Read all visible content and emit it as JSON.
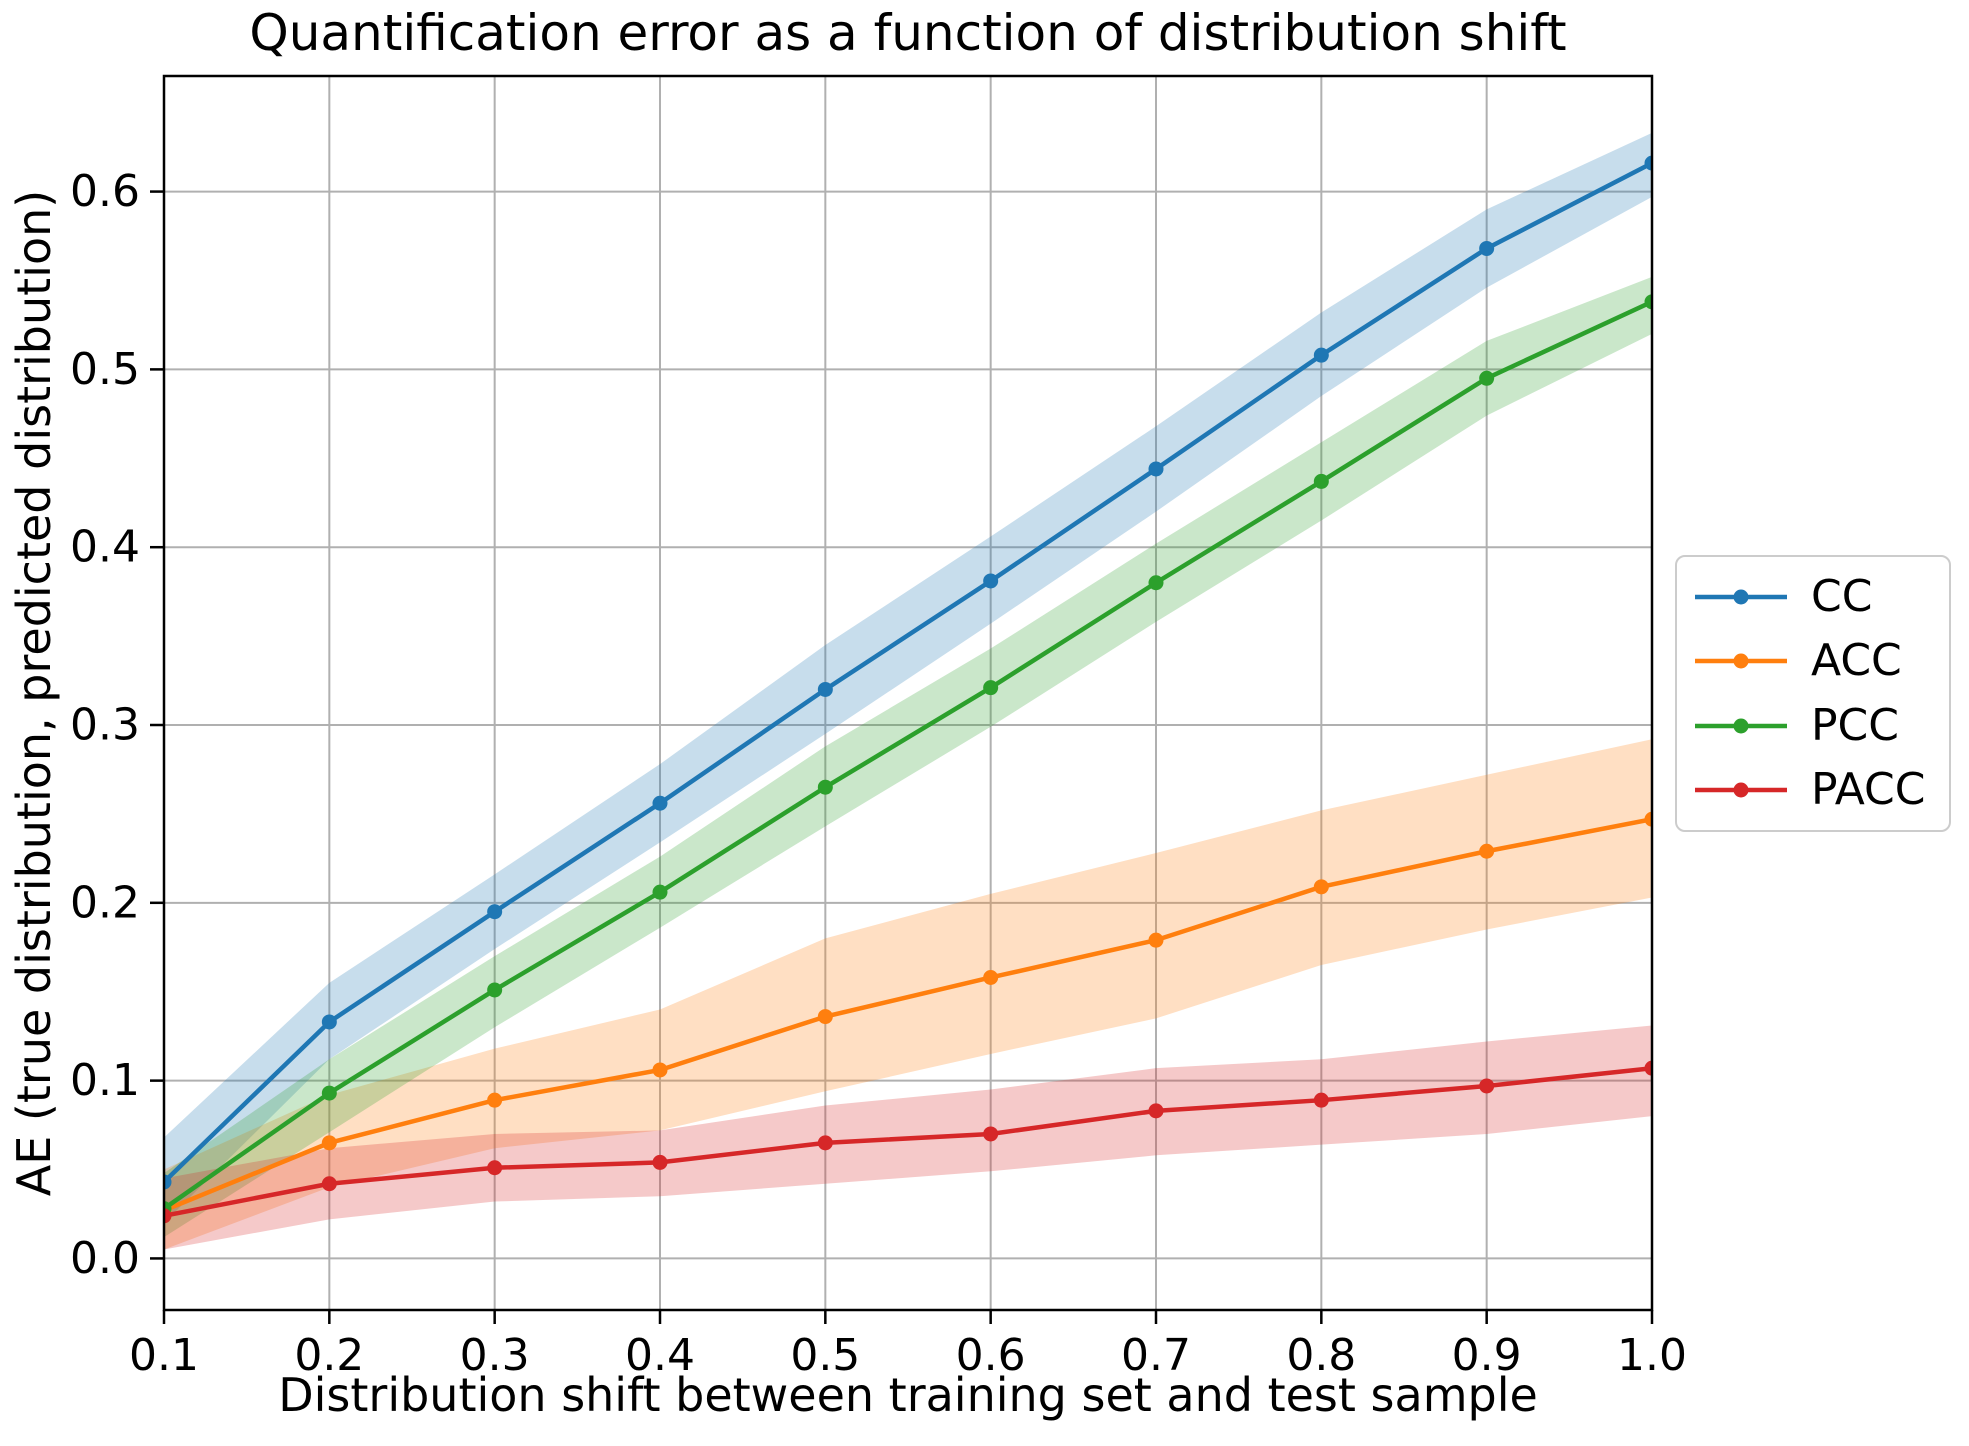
{
  "chart_data": {
    "type": "line",
    "title": "Quantification error as a function of distribution shift",
    "xlabel": "Distribution shift between training set and test sample",
    "ylabel": "AE (true distribution, predicted distribution)",
    "x": [
      0.1,
      0.2,
      0.3,
      0.4,
      0.5,
      0.6,
      0.7,
      0.8,
      0.9,
      1.0
    ],
    "x_tick_labels": [
      "0.1",
      "0.2",
      "0.3",
      "0.4",
      "0.5",
      "0.6",
      "0.7",
      "0.8",
      "0.9",
      "1.0"
    ],
    "y_ticks": [
      0.0,
      0.1,
      0.2,
      0.3,
      0.4,
      0.5,
      0.6
    ],
    "y_tick_labels": [
      "0.0",
      "0.1",
      "0.2",
      "0.3",
      "0.4",
      "0.5",
      "0.6"
    ],
    "xlim": [
      0.1,
      1.0
    ],
    "ylim": [
      -0.029,
      0.665
    ],
    "grid": true,
    "grid_color": "#b0b0b0",
    "legend_position": "center right outside",
    "band_opacity": 0.25,
    "series": [
      {
        "name": "CC",
        "color": "#1f77b4",
        "values": [
          0.043,
          0.133,
          0.195,
          0.256,
          0.32,
          0.381,
          0.444,
          0.508,
          0.568,
          0.616
        ],
        "band_lower": [
          0.02,
          0.112,
          0.174,
          0.234,
          0.295,
          0.357,
          0.42,
          0.485,
          0.546,
          0.597
        ],
        "band_upper": [
          0.068,
          0.155,
          0.216,
          0.278,
          0.345,
          0.406,
          0.468,
          0.532,
          0.59,
          0.633
        ]
      },
      {
        "name": "ACC",
        "color": "#ff7f0e",
        "values": [
          0.027,
          0.065,
          0.089,
          0.106,
          0.136,
          0.158,
          0.179,
          0.209,
          0.229,
          0.247
        ],
        "band_lower": [
          0.005,
          0.04,
          0.062,
          0.072,
          0.094,
          0.115,
          0.135,
          0.165,
          0.185,
          0.203
        ],
        "band_upper": [
          0.05,
          0.092,
          0.118,
          0.14,
          0.18,
          0.205,
          0.228,
          0.252,
          0.272,
          0.292
        ]
      },
      {
        "name": "PCC",
        "color": "#2ca02c",
        "values": [
          0.028,
          0.093,
          0.151,
          0.206,
          0.265,
          0.321,
          0.38,
          0.437,
          0.495,
          0.538
        ],
        "band_lower": [
          0.012,
          0.071,
          0.13,
          0.186,
          0.243,
          0.299,
          0.358,
          0.415,
          0.474,
          0.52
        ],
        "band_upper": [
          0.048,
          0.112,
          0.17,
          0.226,
          0.288,
          0.343,
          0.402,
          0.459,
          0.516,
          0.552
        ]
      },
      {
        "name": "PACC",
        "color": "#d62728",
        "values": [
          0.024,
          0.042,
          0.051,
          0.054,
          0.065,
          0.07,
          0.083,
          0.089,
          0.097,
          0.107
        ],
        "band_lower": [
          0.005,
          0.022,
          0.032,
          0.035,
          0.042,
          0.049,
          0.058,
          0.064,
          0.07,
          0.08
        ],
        "band_upper": [
          0.045,
          0.062,
          0.07,
          0.072,
          0.086,
          0.095,
          0.107,
          0.112,
          0.122,
          0.131
        ]
      }
    ]
  }
}
